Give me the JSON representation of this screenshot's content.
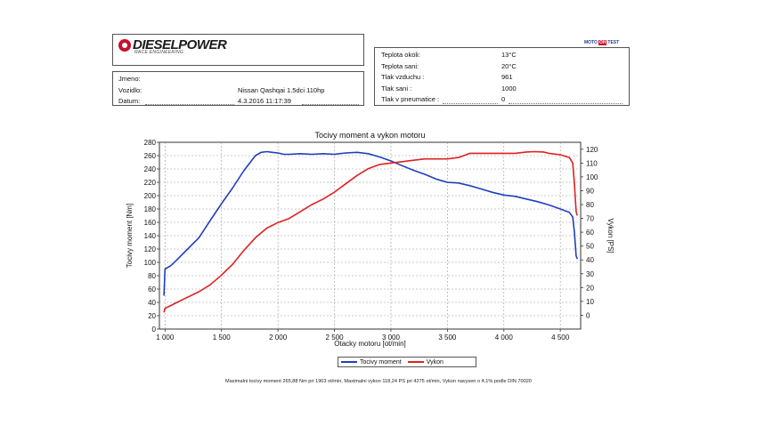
{
  "header": {
    "logo": {
      "brand": "DIESELPOWER",
      "tagline": "RACE ENGINEERING"
    },
    "vehicle_info": [
      {
        "label": "Jmeno:",
        "value": ""
      },
      {
        "label": "Vozidlo:",
        "value": "Nissan Qashqai 1.5dci 110hp"
      },
      {
        "label": "Datum:",
        "value": "4.3.2016 11:17:39"
      }
    ],
    "conditions": [
      {
        "label": "Teplota okoli:",
        "value": "13°C"
      },
      {
        "label": "Teplota sani:",
        "value": "20°C"
      },
      {
        "label": "Tlak vzduchu :",
        "value": "961"
      },
      {
        "label": "Tlak sani :",
        "value": "1000"
      },
      {
        "label": "Tlak v pneumatice :",
        "value": "0"
      }
    ],
    "badge": {
      "left": "MOTO",
      "mid": "OH",
      "right": "TEST"
    }
  },
  "chart_data": {
    "type": "line",
    "title": "Tocivy moment a vykon motoru",
    "xlabel": "Otacky motoru [ot/min]",
    "ylabel": "Tocivy moment [Nm]",
    "y2label": "Vykon [PS]",
    "xlim": [
      950,
      4680
    ],
    "ylim": [
      0,
      280
    ],
    "y2lim": [
      -10,
      125
    ],
    "x_ticks": [
      1000,
      1500,
      2000,
      2500,
      3000,
      3500,
      4000,
      4500
    ],
    "x_tick_labels": [
      "1 000",
      "1 500",
      "2 000",
      "2 500",
      "3 000",
      "3 500",
      "4 000",
      "4 500"
    ],
    "y_ticks": [
      0,
      20,
      40,
      60,
      80,
      100,
      120,
      140,
      160,
      180,
      200,
      220,
      240,
      260,
      280
    ],
    "y2_ticks": [
      0,
      10,
      20,
      30,
      40,
      50,
      60,
      70,
      80,
      90,
      100,
      110,
      120
    ],
    "grid": true,
    "series": [
      {
        "name": "Tocivy moment",
        "color": "#1f3fbf",
        "axis": "left",
        "points": [
          [
            990,
            50
          ],
          [
            1000,
            90
          ],
          [
            1050,
            95
          ],
          [
            1100,
            103
          ],
          [
            1200,
            120
          ],
          [
            1300,
            137
          ],
          [
            1400,
            163
          ],
          [
            1500,
            188
          ],
          [
            1600,
            212
          ],
          [
            1700,
            238
          ],
          [
            1800,
            260
          ],
          [
            1850,
            265
          ],
          [
            1903,
            266
          ],
          [
            1950,
            265
          ],
          [
            2000,
            264
          ],
          [
            2050,
            262
          ],
          [
            2100,
            262
          ],
          [
            2200,
            263
          ],
          [
            2300,
            262
          ],
          [
            2400,
            263
          ],
          [
            2500,
            262
          ],
          [
            2600,
            264
          ],
          [
            2700,
            265
          ],
          [
            2800,
            263
          ],
          [
            2900,
            258
          ],
          [
            3000,
            252
          ],
          [
            3100,
            245
          ],
          [
            3200,
            238
          ],
          [
            3300,
            232
          ],
          [
            3400,
            225
          ],
          [
            3500,
            220
          ],
          [
            3600,
            219
          ],
          [
            3700,
            215
          ],
          [
            3800,
            210
          ],
          [
            3900,
            205
          ],
          [
            4000,
            201
          ],
          [
            4100,
            199
          ],
          [
            4200,
            195
          ],
          [
            4300,
            191
          ],
          [
            4400,
            186
          ],
          [
            4500,
            180
          ],
          [
            4580,
            175
          ],
          [
            4610,
            168
          ],
          [
            4625,
            145
          ],
          [
            4640,
            110
          ],
          [
            4650,
            105
          ]
        ]
      },
      {
        "name": "Vykon",
        "color": "#e02020",
        "axis": "right",
        "points": [
          [
            990,
            2
          ],
          [
            1000,
            5
          ],
          [
            1050,
            7
          ],
          [
            1100,
            9
          ],
          [
            1200,
            13
          ],
          [
            1300,
            17
          ],
          [
            1400,
            22
          ],
          [
            1500,
            29
          ],
          [
            1600,
            37
          ],
          [
            1700,
            47
          ],
          [
            1800,
            56
          ],
          [
            1903,
            63
          ],
          [
            2000,
            67
          ],
          [
            2100,
            70
          ],
          [
            2200,
            75
          ],
          [
            2300,
            80
          ],
          [
            2400,
            84
          ],
          [
            2500,
            89
          ],
          [
            2600,
            95
          ],
          [
            2700,
            101
          ],
          [
            2800,
            106
          ],
          [
            2900,
            109
          ],
          [
            3000,
            110
          ],
          [
            3100,
            111
          ],
          [
            3200,
            112
          ],
          [
            3300,
            113
          ],
          [
            3400,
            113
          ],
          [
            3500,
            113
          ],
          [
            3600,
            114
          ],
          [
            3700,
            117
          ],
          [
            3800,
            117
          ],
          [
            3900,
            117
          ],
          [
            4000,
            117
          ],
          [
            4100,
            117
          ],
          [
            4200,
            118
          ],
          [
            4275,
            118.24
          ],
          [
            4350,
            118
          ],
          [
            4400,
            117
          ],
          [
            4500,
            116
          ],
          [
            4580,
            114
          ],
          [
            4610,
            110
          ],
          [
            4625,
            95
          ],
          [
            4640,
            75
          ],
          [
            4650,
            72
          ]
        ]
      }
    ]
  },
  "legend": [
    {
      "label": "Tocivy moment",
      "color": "#1f3fbf"
    },
    {
      "label": "Vykon",
      "color": "#e02020"
    }
  ],
  "footer_text": "Maximalni tocivy moment 265,88 Nm pri 1903 ot/min,  Maximalni vykon 118,24 PS pri 4275 ot/min,  Vykon navysen o 4,1% podle DIN 70020"
}
